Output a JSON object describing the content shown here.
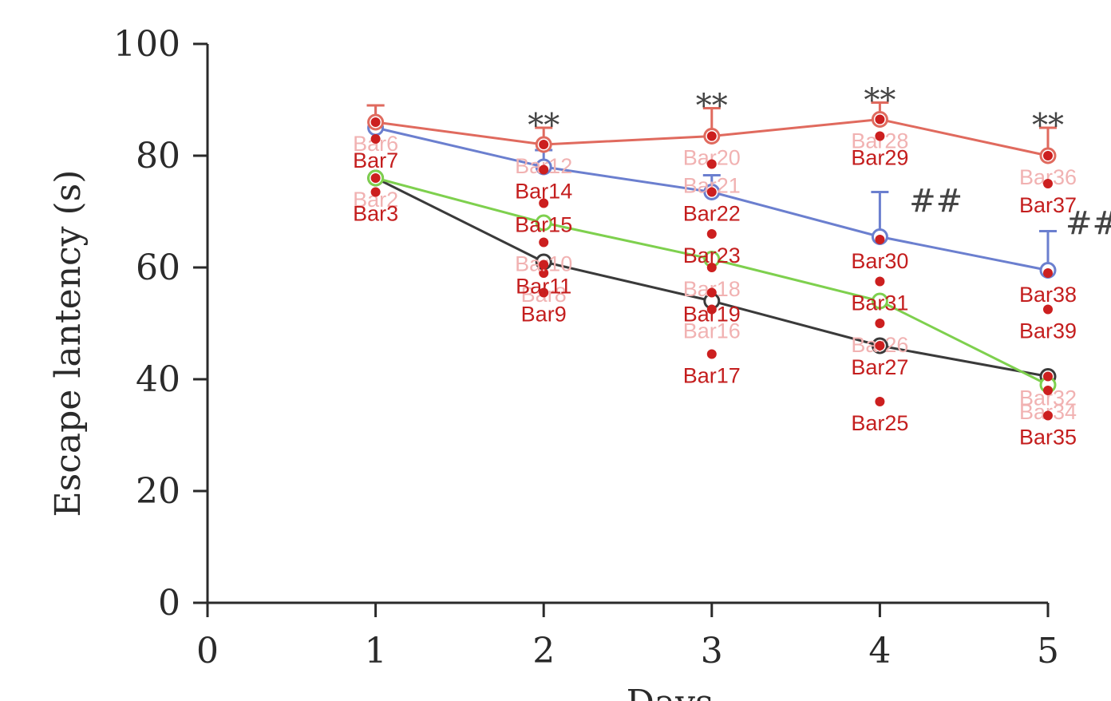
{
  "chart_data": {
    "type": "line",
    "xlabel": "Days",
    "ylabel": "Escape lantency (s)",
    "xlim": [
      0,
      5
    ],
    "ylim": [
      0,
      100
    ],
    "x_ticks": [
      "0",
      "1",
      "2",
      "3",
      "4",
      "5"
    ],
    "y_ticks": [
      "0",
      "20",
      "40",
      "60",
      "80",
      "100"
    ],
    "x": [
      1,
      2,
      3,
      4,
      5
    ],
    "series": [
      {
        "color": "#e06a5e",
        "values": [
          86,
          82,
          83.5,
          86.5,
          80
        ],
        "error": [
          3,
          3,
          5,
          3,
          5
        ]
      },
      {
        "color": "#6b7fcf",
        "values": [
          85,
          78,
          73.5,
          65.5,
          59.5
        ],
        "error": [
          4,
          3,
          3,
          8,
          7
        ]
      },
      {
        "color": "#7ed04e",
        "values": [
          76,
          68,
          61.5,
          54,
          39
        ],
        "error": [
          0,
          0,
          0,
          0,
          0
        ]
      },
      {
        "color": "#3a3a3a",
        "values": [
          76,
          61,
          54,
          46,
          40.5
        ],
        "error": [
          0,
          0,
          0,
          0,
          0
        ]
      }
    ],
    "significance": [
      {
        "text": "**",
        "x": 2,
        "y": 85.5
      },
      {
        "text": "**",
        "x": 3,
        "y": 89
      },
      {
        "text": "**",
        "x": 4,
        "y": 90
      },
      {
        "text": "**",
        "x": 5,
        "y": 85.5
      },
      {
        "text": "##",
        "x": 4.07,
        "y": 72
      },
      {
        "text": "##",
        "x": 5,
        "y": 68
      }
    ],
    "marks": [
      {
        "label": "Bar2",
        "x": 1,
        "y": 76,
        "faded": true
      },
      {
        "label": "Bar3",
        "x": 1,
        "y": 73.5,
        "faded": false
      },
      {
        "label": "Bar6",
        "x": 1,
        "y": 86,
        "faded": true
      },
      {
        "label": "Bar7",
        "x": 1,
        "y": 83,
        "faded": false
      },
      {
        "label": "Bar8",
        "x": 2,
        "y": 59,
        "faded": true
      },
      {
        "label": "Bar9",
        "x": 2,
        "y": 55.5,
        "faded": false
      },
      {
        "label": "Bar10",
        "x": 2,
        "y": 64.5,
        "faded": true
      },
      {
        "label": "Bar11",
        "x": 2,
        "y": 60.5,
        "faded": false
      },
      {
        "label": "Bar12",
        "x": 2,
        "y": 82,
        "faded": true
      },
      {
        "label": "Bar14",
        "x": 2,
        "y": 77.5,
        "faded": false
      },
      {
        "label": "Bar15",
        "x": 2,
        "y": 71.5,
        "faded": false
      },
      {
        "label": "Bar16",
        "x": 3,
        "y": 52.5,
        "faded": true
      },
      {
        "label": "Bar17",
        "x": 3,
        "y": 44.5,
        "faded": false
      },
      {
        "label": "Bar18",
        "x": 3,
        "y": 60,
        "faded": true
      },
      {
        "label": "Bar19",
        "x": 3,
        "y": 55.5,
        "faded": false
      },
      {
        "label": "Bar20",
        "x": 3,
        "y": 83.5,
        "faded": true
      },
      {
        "label": "Bar21",
        "x": 3,
        "y": 78.5,
        "faded": true
      },
      {
        "label": "Bar22",
        "x": 3,
        "y": 73.5,
        "faded": false
      },
      {
        "label": "Bar23",
        "x": 3,
        "y": 66,
        "faded": false
      },
      {
        "label": "Bar25",
        "x": 4,
        "y": 36,
        "faded": false
      },
      {
        "label": "Bar26",
        "x": 4,
        "y": 50,
        "faded": true
      },
      {
        "label": "Bar27",
        "x": 4,
        "y": 46,
        "faded": false
      },
      {
        "label": "Bar28",
        "x": 4,
        "y": 86.5,
        "faded": true
      },
      {
        "label": "Bar29",
        "x": 4,
        "y": 83.5,
        "faded": false
      },
      {
        "label": "Bar30",
        "x": 4,
        "y": 65,
        "faded": false
      },
      {
        "label": "Bar31",
        "x": 4,
        "y": 57.5,
        "faded": false
      },
      {
        "label": "Bar32",
        "x": 5,
        "y": 40.5,
        "faded": true
      },
      {
        "label": "Bar34",
        "x": 5,
        "y": 38,
        "faded": true
      },
      {
        "label": "Bar35",
        "x": 5,
        "y": 33.5,
        "faded": false
      },
      {
        "label": "Bar36",
        "x": 5,
        "y": 80,
        "faded": true
      },
      {
        "label": "Bar37",
        "x": 5,
        "y": 75,
        "faded": false
      },
      {
        "label": "Bar38",
        "x": 5,
        "y": 59,
        "faded": false
      },
      {
        "label": "Bar39",
        "x": 5,
        "y": 52.5,
        "faded": false
      }
    ]
  }
}
